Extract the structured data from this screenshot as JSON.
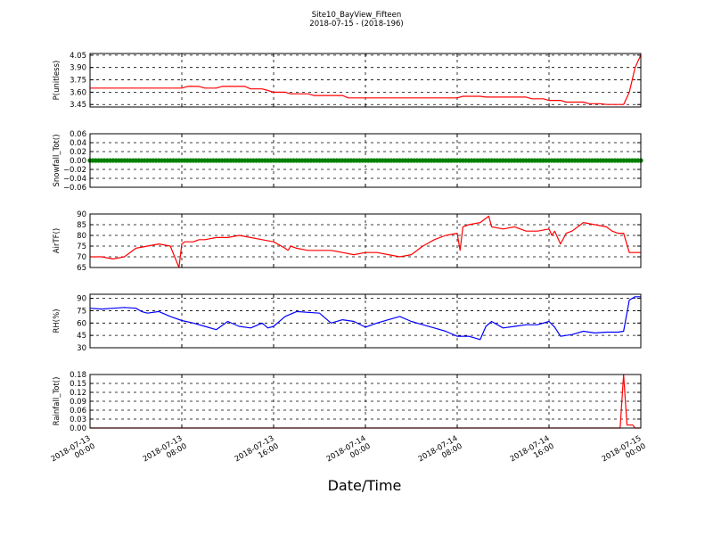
{
  "chart_data": {
    "type": "line",
    "title": "Site10_BayView_Fifteen",
    "subtitle": "2018-07-15 - (2018-196)",
    "xlabel": "Date/Time",
    "x_ticks": [
      {
        "l1": "2018-07-13",
        "l2": "00:00"
      },
      {
        "l1": "2018-07-13",
        "l2": "08:00"
      },
      {
        "l1": "2018-07-13",
        "l2": "16:00"
      },
      {
        "l1": "2018-07-14",
        "l2": "00:00"
      },
      {
        "l1": "2018-07-14",
        "l2": "08:00"
      },
      {
        "l1": "2018-07-14",
        "l2": "16:00"
      },
      {
        "l1": "2018-07-15",
        "l2": "00:00"
      }
    ],
    "xlim": [
      "2018-07-13 00:00",
      "2018-07-15 00:00"
    ],
    "grid": true,
    "panels": [
      {
        "ylabel": "P(unitless)",
        "ylim": [
          3.42,
          4.07
        ],
        "yticks": [
          3.45,
          3.6,
          3.75,
          3.9,
          4.05
        ],
        "ytick_labels": [
          "3.45",
          "3.60",
          "3.75",
          "3.90",
          "4.05"
        ],
        "color": "#ff0000",
        "style": "line",
        "x_hours": [
          0,
          8,
          8.5,
          9.5,
          10,
          11,
          11.5,
          13.5,
          14,
          15,
          15.5,
          16,
          17,
          17.5,
          19,
          19.5,
          22,
          22.5,
          24,
          32,
          32.5,
          34,
          34.5,
          38,
          38.5,
          39.5,
          40,
          41,
          41.5,
          43,
          43.5,
          44,
          44.5,
          45,
          46,
          46.5,
          47,
          47.5,
          48
        ],
        "values": [
          3.65,
          3.65,
          3.67,
          3.67,
          3.65,
          3.65,
          3.67,
          3.67,
          3.64,
          3.64,
          3.62,
          3.6,
          3.6,
          3.58,
          3.58,
          3.56,
          3.56,
          3.53,
          3.53,
          3.53,
          3.55,
          3.55,
          3.54,
          3.54,
          3.52,
          3.52,
          3.5,
          3.5,
          3.48,
          3.48,
          3.46,
          3.46,
          3.46,
          3.45,
          3.45,
          3.45,
          3.6,
          3.9,
          4.05
        ]
      },
      {
        "ylabel": "Snowfall_Tot()",
        "ylim": [
          -0.06,
          0.06
        ],
        "yticks": [
          -0.06,
          -0.04,
          -0.02,
          0.0,
          0.02,
          0.04,
          0.06
        ],
        "ytick_labels": [
          "−0.06",
          "−0.04",
          "−0.02",
          "0.00",
          "0.02",
          "0.04",
          "0.06"
        ],
        "color": "#008000",
        "style": "markers",
        "constant_value": 0.0,
        "x_range_hours": [
          0,
          48
        ]
      },
      {
        "ylabel": "AirTF()",
        "ylim": [
          65,
          90
        ],
        "yticks": [
          65,
          70,
          75,
          80,
          85,
          90
        ],
        "ytick_labels": [
          "65",
          "70",
          "75",
          "80",
          "85",
          "90"
        ],
        "color": "#ff0000",
        "style": "line",
        "x_hours": [
          0,
          1,
          2,
          3,
          4,
          5,
          6,
          7,
          7.75,
          8,
          8.25,
          9,
          9.5,
          10,
          11,
          12,
          13,
          14,
          15,
          16,
          17,
          17.25,
          17.5,
          18,
          19,
          20,
          21,
          22,
          23,
          24,
          25,
          26,
          27,
          28,
          29,
          30,
          31,
          32,
          32.25,
          32.5,
          33,
          34,
          34.75,
          35,
          36,
          37,
          38,
          39,
          40,
          40.25,
          40.5,
          41,
          41.5,
          42,
          43,
          44,
          45,
          45.5,
          46,
          46.5,
          47,
          48
        ],
        "values": [
          70,
          70,
          69,
          70,
          74,
          75,
          76,
          75,
          65,
          76,
          77,
          77,
          78,
          78,
          79,
          79,
          80,
          79,
          78,
          77,
          74,
          73,
          75,
          74,
          73,
          73,
          73,
          72,
          71,
          72,
          72,
          71,
          70,
          71,
          75,
          78,
          80,
          81,
          73,
          84,
          85,
          86,
          89,
          84,
          83,
          84,
          82,
          82,
          83,
          80,
          82,
          76,
          81,
          82,
          86,
          85,
          84,
          82,
          81,
          81,
          72,
          72
        ]
      },
      {
        "ylabel": "RH(%)",
        "ylim": [
          30,
          95
        ],
        "yticks": [
          30,
          45,
          60,
          75,
          90
        ],
        "ytick_labels": [
          "30",
          "45",
          "60",
          "75",
          "90"
        ],
        "color": "#0000ff",
        "style": "line",
        "x_hours": [
          0,
          1,
          2,
          3,
          4,
          4.5,
          5,
          6,
          7,
          8,
          9,
          10,
          11,
          12,
          13,
          14,
          15,
          15.5,
          16,
          17,
          18,
          19,
          20,
          21,
          22,
          23,
          24,
          25,
          26,
          27,
          28,
          29,
          30,
          31,
          32,
          33,
          34,
          34.5,
          35,
          36,
          37,
          38,
          39,
          40,
          40.5,
          41,
          41.5,
          42,
          43,
          44,
          45,
          46,
          46.5,
          47,
          47.5,
          48
        ],
        "values": [
          78,
          77,
          78,
          79,
          78,
          74,
          72,
          74,
          68,
          63,
          60,
          56,
          52,
          62,
          56,
          54,
          60,
          54,
          56,
          68,
          74,
          73,
          72,
          60,
          64,
          62,
          55,
          60,
          64,
          68,
          62,
          58,
          54,
          50,
          44,
          44,
          40,
          56,
          62,
          54,
          56,
          58,
          58,
          62,
          55,
          44,
          45,
          46,
          50,
          48,
          49,
          49,
          50,
          88,
          92,
          92
        ]
      },
      {
        "ylabel": "Rainfall_Tot()",
        "ylim": [
          0,
          0.18
        ],
        "yticks": [
          0.0,
          0.03,
          0.06,
          0.09,
          0.12,
          0.15,
          0.18
        ],
        "ytick_labels": [
          "0.00",
          "0.03",
          "0.06",
          "0.09",
          "0.12",
          "0.15",
          "0.18"
        ],
        "color": "#ff0000",
        "style": "line",
        "x_hours": [
          0,
          46.2,
          46.5,
          46.8,
          47.3,
          47.5,
          48
        ],
        "values": [
          0,
          0,
          0.18,
          0.01,
          0.01,
          0,
          0
        ]
      }
    ]
  }
}
